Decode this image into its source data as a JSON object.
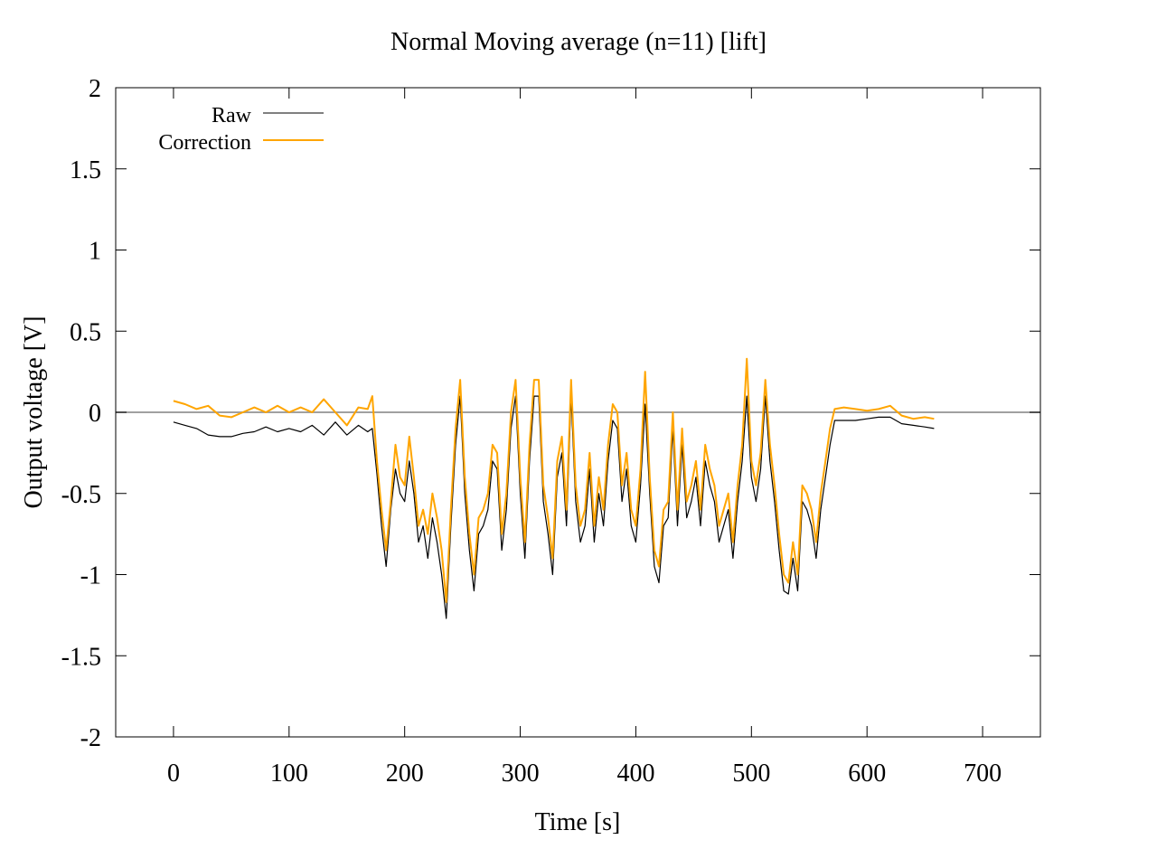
{
  "chart_data": {
    "type": "line",
    "title": "Normal  Moving average (n=11) [lift]",
    "xlabel": "Time [s]",
    "ylabel": "Output voltage [V]",
    "xlim": [
      -50,
      750
    ],
    "ylim": [
      -2,
      2
    ],
    "xticks": [
      0,
      100,
      200,
      300,
      400,
      500,
      600,
      700
    ],
    "yticks": [
      -2,
      -1.5,
      -1,
      -0.5,
      0,
      0.5,
      1,
      1.5,
      2
    ],
    "xtick_labels": [
      "0",
      "100",
      "200",
      "300",
      "400",
      "500",
      "600",
      "700"
    ],
    "ytick_labels": [
      "-2",
      "-1.5",
      "-1",
      "-0.5",
      "0",
      "0.5",
      "1",
      "1.5",
      "2"
    ],
    "grid": false,
    "legend": "top-left",
    "zero_line": {
      "y": 0,
      "color": "#a0a0a0"
    },
    "series": [
      {
        "name": "Raw",
        "color": "#000000",
        "x": [
          0,
          10,
          20,
          30,
          40,
          50,
          60,
          70,
          80,
          90,
          100,
          110,
          120,
          130,
          140,
          150,
          160,
          168,
          172,
          176,
          180,
          184,
          188,
          192,
          196,
          200,
          204,
          208,
          212,
          216,
          220,
          224,
          228,
          232,
          236,
          240,
          244,
          248,
          252,
          256,
          260,
          264,
          268,
          272,
          276,
          280,
          284,
          288,
          292,
          296,
          300,
          304,
          308,
          312,
          316,
          320,
          324,
          328,
          332,
          336,
          340,
          344,
          348,
          352,
          356,
          360,
          364,
          368,
          372,
          376,
          380,
          384,
          388,
          392,
          396,
          400,
          404,
          408,
          412,
          416,
          420,
          424,
          428,
          432,
          436,
          440,
          444,
          448,
          452,
          456,
          460,
          464,
          468,
          472,
          476,
          480,
          484,
          488,
          492,
          496,
          500,
          504,
          508,
          512,
          516,
          520,
          524,
          528,
          532,
          536,
          540,
          544,
          548,
          552,
          556,
          560,
          564,
          568,
          572,
          580,
          590,
          600,
          610,
          620,
          630,
          640,
          650,
          658
        ],
        "y": [
          -0.06,
          -0.08,
          -0.1,
          -0.14,
          -0.15,
          -0.15,
          -0.13,
          -0.12,
          -0.09,
          -0.12,
          -0.1,
          -0.12,
          -0.08,
          -0.14,
          -0.06,
          -0.14,
          -0.08,
          -0.12,
          -0.1,
          -0.38,
          -0.7,
          -0.95,
          -0.6,
          -0.35,
          -0.5,
          -0.55,
          -0.3,
          -0.5,
          -0.8,
          -0.7,
          -0.9,
          -0.65,
          -0.8,
          -1.0,
          -1.27,
          -0.7,
          -0.2,
          0.1,
          -0.5,
          -0.85,
          -1.1,
          -0.75,
          -0.7,
          -0.6,
          -0.3,
          -0.35,
          -0.85,
          -0.6,
          -0.1,
          0.1,
          -0.5,
          -0.9,
          -0.3,
          0.1,
          0.1,
          -0.55,
          -0.75,
          -1.0,
          -0.4,
          -0.25,
          -0.7,
          0.1,
          -0.55,
          -0.8,
          -0.7,
          -0.35,
          -0.8,
          -0.5,
          -0.7,
          -0.3,
          -0.05,
          -0.1,
          -0.55,
          -0.35,
          -0.7,
          -0.8,
          -0.45,
          0.05,
          -0.5,
          -0.95,
          -1.05,
          -0.7,
          -0.65,
          -0.1,
          -0.7,
          -0.2,
          -0.65,
          -0.55,
          -0.4,
          -0.7,
          -0.3,
          -0.45,
          -0.55,
          -0.8,
          -0.7,
          -0.6,
          -0.9,
          -0.55,
          -0.3,
          0.1,
          -0.4,
          -0.55,
          -0.35,
          0.1,
          -0.3,
          -0.55,
          -0.85,
          -1.1,
          -1.12,
          -0.9,
          -1.1,
          -0.55,
          -0.6,
          -0.7,
          -0.9,
          -0.6,
          -0.4,
          -0.2,
          -0.05,
          -0.05,
          -0.05,
          -0.04,
          -0.03,
          -0.03,
          -0.07,
          -0.08,
          -0.09,
          -0.1
        ]
      },
      {
        "name": "Correction",
        "color": "#ffa500",
        "x": [
          0,
          10,
          20,
          30,
          40,
          50,
          60,
          70,
          80,
          90,
          100,
          110,
          120,
          130,
          140,
          150,
          160,
          168,
          172,
          176,
          180,
          184,
          188,
          192,
          196,
          200,
          204,
          208,
          212,
          216,
          220,
          224,
          228,
          232,
          236,
          240,
          244,
          248,
          252,
          256,
          260,
          264,
          268,
          272,
          276,
          280,
          284,
          288,
          292,
          296,
          300,
          304,
          308,
          312,
          316,
          320,
          324,
          328,
          332,
          336,
          340,
          344,
          348,
          352,
          356,
          360,
          364,
          368,
          372,
          376,
          380,
          384,
          388,
          392,
          396,
          400,
          404,
          408,
          412,
          416,
          420,
          424,
          428,
          432,
          436,
          440,
          444,
          448,
          452,
          456,
          460,
          464,
          468,
          472,
          476,
          480,
          484,
          488,
          492,
          496,
          500,
          504,
          508,
          512,
          516,
          520,
          524,
          528,
          532,
          536,
          540,
          544,
          548,
          552,
          556,
          560,
          564,
          568,
          572,
          580,
          590,
          600,
          610,
          620,
          630,
          640,
          650,
          658
        ],
        "y": [
          0.07,
          0.05,
          0.02,
          0.04,
          -0.02,
          -0.03,
          0.0,
          0.03,
          0.0,
          0.04,
          0.0,
          0.03,
          0.0,
          0.08,
          0.0,
          -0.08,
          0.03,
          0.02,
          0.1,
          -0.3,
          -0.6,
          -0.85,
          -0.55,
          -0.2,
          -0.4,
          -0.45,
          -0.15,
          -0.4,
          -0.7,
          -0.6,
          -0.75,
          -0.5,
          -0.65,
          -0.85,
          -1.17,
          -0.6,
          -0.1,
          0.2,
          -0.4,
          -0.75,
          -1.0,
          -0.65,
          -0.6,
          -0.5,
          -0.2,
          -0.25,
          -0.75,
          -0.5,
          0.0,
          0.2,
          -0.4,
          -0.8,
          -0.2,
          0.2,
          0.2,
          -0.45,
          -0.65,
          -0.9,
          -0.3,
          -0.15,
          -0.6,
          0.2,
          -0.45,
          -0.7,
          -0.6,
          -0.25,
          -0.7,
          -0.4,
          -0.6,
          -0.2,
          0.05,
          0.0,
          -0.45,
          -0.25,
          -0.6,
          -0.7,
          -0.35,
          0.25,
          -0.4,
          -0.85,
          -0.95,
          -0.6,
          -0.55,
          0.0,
          -0.6,
          -0.1,
          -0.55,
          -0.45,
          -0.3,
          -0.6,
          -0.2,
          -0.35,
          -0.45,
          -0.7,
          -0.6,
          -0.5,
          -0.8,
          -0.45,
          -0.2,
          0.33,
          -0.3,
          -0.45,
          -0.25,
          0.2,
          -0.2,
          -0.45,
          -0.75,
          -1.0,
          -1.05,
          -0.8,
          -1.0,
          -0.45,
          -0.5,
          -0.6,
          -0.8,
          -0.5,
          -0.3,
          -0.1,
          0.02,
          0.03,
          0.02,
          0.01,
          0.02,
          0.04,
          -0.02,
          -0.04,
          -0.03,
          -0.04
        ]
      }
    ]
  }
}
